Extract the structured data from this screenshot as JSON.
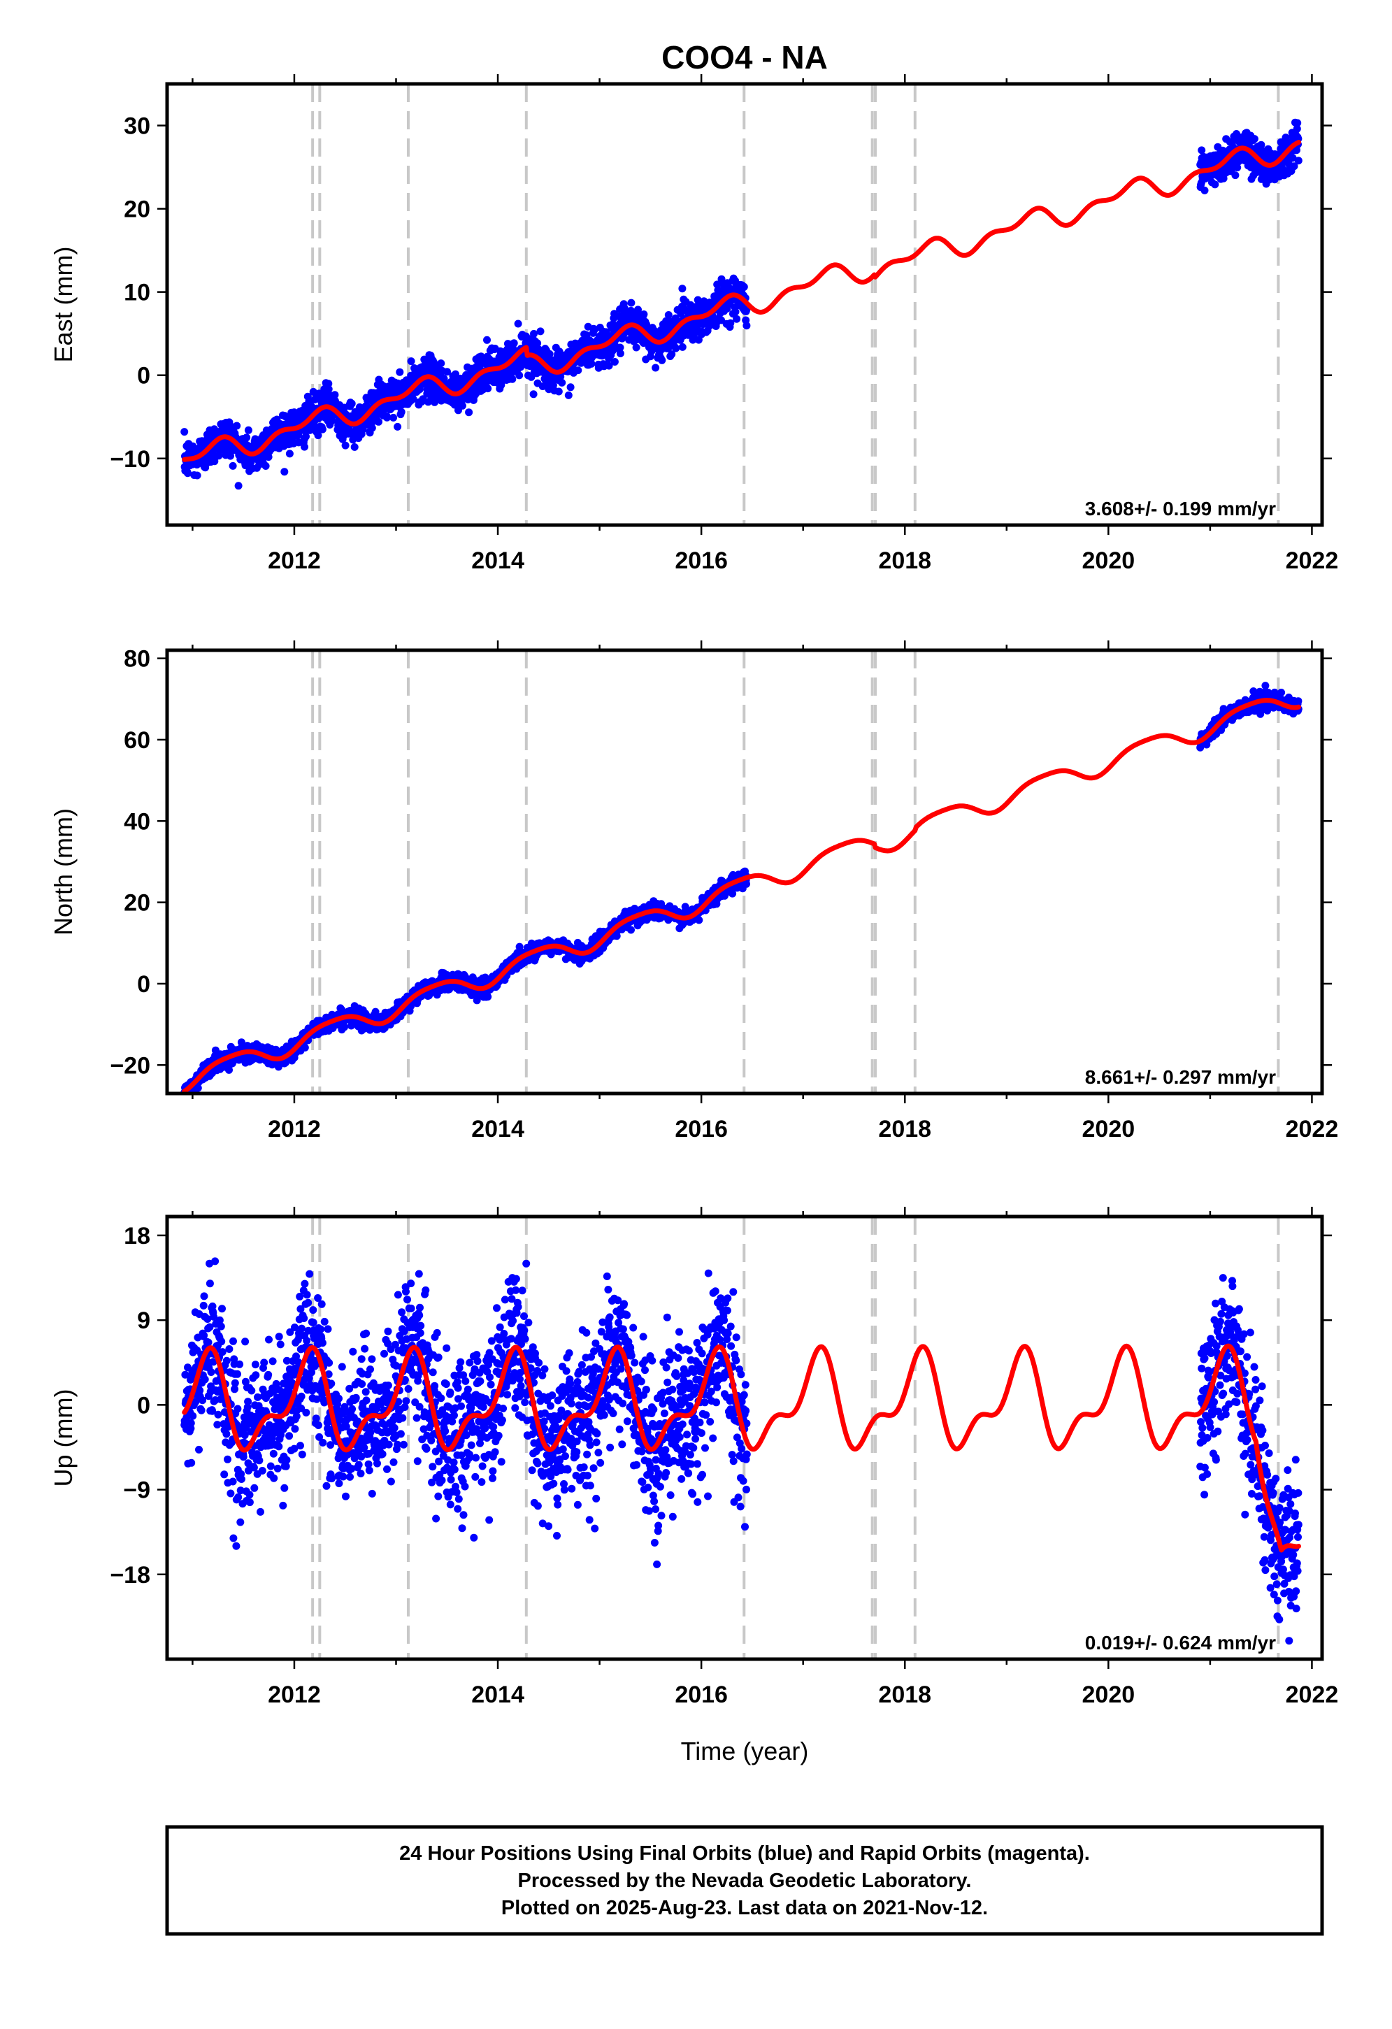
{
  "chart_data": {
    "title": "COO4 - NA",
    "xlabel": "Time (year)",
    "xlim": [
      2010.75,
      2022.1
    ],
    "x_ticks": [
      2012,
      2014,
      2016,
      2018,
      2020,
      2022
    ],
    "x_tick_labels": [
      "2012",
      "2014",
      "2016",
      "2018",
      "2020",
      "2022"
    ],
    "event_lines": [
      2012.18,
      2012.25,
      2013.12,
      2014.28,
      2016.42,
      2017.68,
      2017.71,
      2018.1,
      2021.67
    ],
    "data_gap": [
      2016.45,
      2020.9
    ],
    "colors": {
      "final_orbits": "#0000ff",
      "rapid_orbits": "#ff00ff",
      "model_fit": "#ff0000",
      "event_lines": "#c8c8c8"
    },
    "panels": [
      {
        "id": "east",
        "type": "scatter",
        "ylabel": "East (mm)",
        "ylim": [
          -18,
          35
        ],
        "y_ticks": [
          -10,
          0,
          10,
          20,
          30
        ],
        "y_tick_labels": [
          "−10",
          "0",
          "10",
          "20",
          "30"
        ],
        "rate_text": "3.608+/- 0.199 mm/yr",
        "rate_mm_per_yr": 3.608,
        "rate_sigma": 0.199,
        "model": {
          "ref_year": 2011.0,
          "offset": -10.0,
          "trend": 3.608,
          "annual_sin": 1.0,
          "annual_cos": 0.4,
          "semiannual_sin": -0.6,
          "semiannual_cos": -0.4,
          "steps": [
            {
              "year": 2014.28,
              "size": -1.0
            },
            {
              "year": 2017.7,
              "size": -0.4
            }
          ]
        },
        "noise_sigma": 1.2
      },
      {
        "id": "north",
        "type": "scatter",
        "ylabel": "North (mm)",
        "ylim": [
          -27,
          82
        ],
        "y_ticks": [
          -20,
          0,
          20,
          40,
          60,
          80
        ],
        "y_tick_labels": [
          "−20",
          "0",
          "20",
          "40",
          "60",
          "80"
        ],
        "rate_text": "8.661+/- 0.297 mm/yr",
        "rate_mm_per_yr": 8.661,
        "rate_sigma": 0.297,
        "model": {
          "ref_year": 2011.0,
          "offset": -23.0,
          "trend": 8.661,
          "annual_sin": 1.6,
          "annual_cos": -1.8,
          "semiannual_sin": 0.5,
          "semiannual_cos": 0.0,
          "steps": [
            {
              "year": 2017.7,
              "size": -0.8
            },
            {
              "year": 2018.1,
              "size": 0.6
            }
          ]
        },
        "noise_sigma": 1.0
      },
      {
        "id": "up",
        "type": "scatter",
        "ylabel": "Up (mm)",
        "ylim": [
          -27,
          20
        ],
        "y_ticks": [
          -18,
          -9,
          0,
          9,
          18
        ],
        "y_tick_labels": [
          "−18",
          "−9",
          "0",
          "9",
          "18"
        ],
        "rate_text": "0.019+/- 0.624 mm/yr",
        "rate_mm_per_yr": 0.019,
        "rate_sigma": 0.624,
        "model": {
          "ref_year": 2011.0,
          "offset": 0.0,
          "trend": 0.019,
          "annual_sin": 3.0,
          "annual_cos": 3.0,
          "semiannual_sin": 1.2,
          "semiannual_cos": -1.8,
          "steps": [],
          "ramp": {
            "start": 2021.45,
            "end": 2021.7,
            "size": -14.0
          }
        },
        "noise_sigma": 3.8
      }
    ]
  },
  "footer": {
    "line1": "24 Hour Positions Using Final Orbits (blue) and Rapid Orbits (magenta).",
    "line2": "Processed by the Nevada Geodetic Laboratory.",
    "line3": "Plotted on 2025-Aug-23. Last data on 2021-Nov-12."
  }
}
